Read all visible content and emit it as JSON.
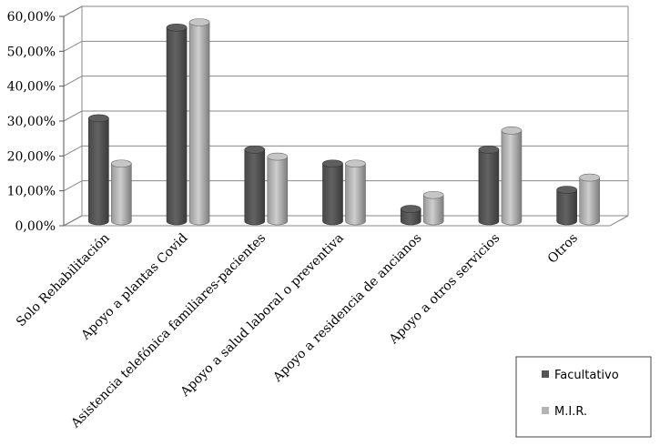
{
  "chart_data": {
    "type": "bar",
    "categories": [
      "Solo Rehabilitación",
      "Apoyo a plantas Covid",
      "Asistencia telefónica familiares-pacientes",
      "Apoyo a salud laboral o preventiva",
      "Apoyo a residencia de ancianos",
      "Apoyo a otros servicios",
      "Otros"
    ],
    "series": [
      {
        "name": "Facultativo",
        "color": "#555555",
        "values": [
          29.5,
          55.5,
          20.5,
          16.5,
          3.5,
          20.5,
          9.0
        ]
      },
      {
        "name": "M.I.R.",
        "color": "#b3b3b3",
        "values": [
          16.5,
          57.0,
          18.5,
          16.5,
          7.5,
          26.0,
          12.5
        ]
      }
    ],
    "yticks": [
      "0,00%",
      "10,00%",
      "20,00%",
      "30,00%",
      "40,00%",
      "50,00%",
      "60,00%"
    ],
    "ylim": [
      0,
      60
    ],
    "grid": true,
    "legend": "bottom-right",
    "three_d": true
  }
}
